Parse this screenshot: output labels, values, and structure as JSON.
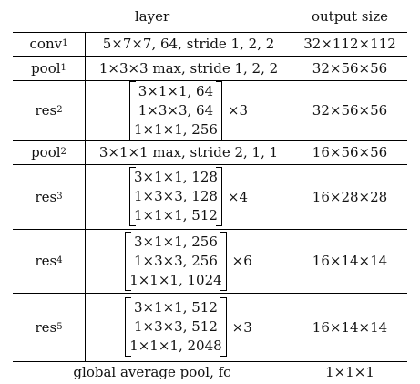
{
  "header": {
    "layer": "layer",
    "output_size": "output size"
  },
  "rows": [
    {
      "name": "conv",
      "sub": "1",
      "body": "5×7×7, 64, stride 1, 2, 2",
      "output": "32×112×112"
    },
    {
      "name": "pool",
      "sub": "1",
      "body": "1×3×3 max, stride 1, 2, 2",
      "output": "32×56×56"
    },
    {
      "name": "res",
      "sub": "2",
      "block": [
        "3×1×1, 64",
        "1×3×3, 64",
        "1×1×1, 256"
      ],
      "mult": "×3",
      "output": "32×56×56"
    },
    {
      "name": "pool",
      "sub": "2",
      "body": "3×1×1 max, stride 2, 1, 1",
      "output": "16×56×56"
    },
    {
      "name": "res",
      "sub": "3",
      "block": [
        "3×1×1, 128",
        "1×3×3, 128",
        "1×1×1, 512"
      ],
      "mult": "×4",
      "output": "16×28×28"
    },
    {
      "name": "res",
      "sub": "4",
      "block": [
        "3×1×1, 256",
        "1×3×3, 256",
        "1×1×1, 1024"
      ],
      "mult": "×6",
      "output": "16×14×14"
    },
    {
      "name": "res",
      "sub": "5",
      "block": [
        "3×1×1, 512",
        "1×3×3, 512",
        "1×1×1, 2048"
      ],
      "mult": "×3",
      "output": "16×14×14"
    }
  ],
  "footer": {
    "label": "global average pool, fc",
    "output": "1×1×1"
  }
}
